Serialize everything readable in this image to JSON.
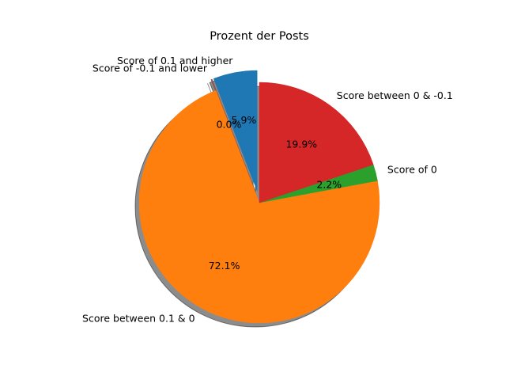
{
  "chart_data": {
    "type": "pie",
    "title": "Prozent der Posts",
    "start_angle_deg": 90,
    "direction": "counterclockwise",
    "shadow": true,
    "slices": [
      {
        "label": "Score of 0.1 and higher",
        "value": 5.9,
        "pct_label": "5.9%",
        "color": "#1f77b4",
        "exploded": true
      },
      {
        "label": "Score of -0.1 and lower",
        "value": 0.0,
        "pct_label": "0.0%",
        "color": "#8c564b",
        "exploded": true
      },
      {
        "label": "Score between 0.1 & 0",
        "value": 72.1,
        "pct_label": "72.1%",
        "color": "#ff7f0e",
        "exploded": false
      },
      {
        "label": "Score of 0",
        "value": 2.2,
        "pct_label": "2.2%",
        "color": "#2ca02c",
        "exploded": false
      },
      {
        "label": "Score between 0 & -0.1",
        "value": 19.9,
        "pct_label": "19.9%",
        "color": "#d62728",
        "exploded": false
      }
    ]
  }
}
